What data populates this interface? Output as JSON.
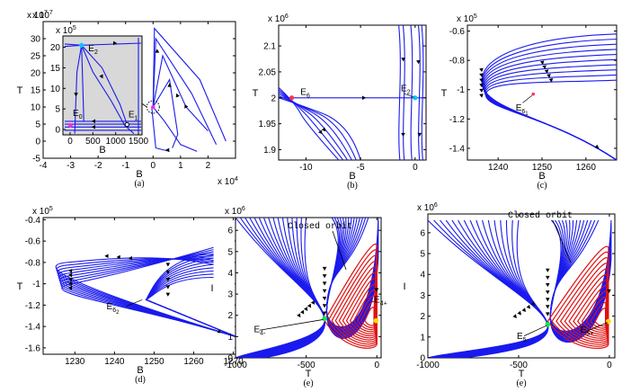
{
  "colors": {
    "trajectory": "#1a1aee",
    "orbit": "#e11010",
    "axis": "#000000",
    "inset_bg": "#d8d8d8"
  },
  "chart_data": [
    {
      "id": "a",
      "type": "line",
      "caption": "(a)",
      "xlabel": "B",
      "ylabel": "T",
      "x_exponent": "x 10",
      "x_exp_power": "4",
      "y_exponent": "x 10",
      "y_exp_power": "7",
      "xlim": [
        -4,
        3
      ],
      "ylim": [
        -5,
        35
      ],
      "xticks": [
        "-4",
        "-3",
        "-2",
        "-1",
        "0",
        "1",
        "2"
      ],
      "yticks": [
        "-5",
        "0",
        "5",
        "10",
        "15",
        "20",
        "25",
        "30"
      ],
      "inset": {
        "xlabel": "B",
        "xticks": [
          "0",
          "500",
          "1000",
          "1500"
        ],
        "y_exponent": "x 10",
        "y_exp_power": "5",
        "yticks": [
          "0",
          "5",
          "10",
          "15",
          "20"
        ],
        "labels": [
          {
            "name": "E",
            "sub": "2",
            "x": 250,
            "y": 20
          },
          {
            "name": "E",
            "sub": "0",
            "x": 10,
            "y": 1
          },
          {
            "name": "E",
            "sub": "1",
            "x": 1200,
            "y": 1
          }
        ]
      }
    },
    {
      "id": "b",
      "type": "line",
      "caption": "(b)",
      "xlabel": "B",
      "ylabel": "T",
      "y_exponent": "x 10",
      "y_exp_power": "6",
      "xlim": [
        -12.5,
        1
      ],
      "ylim": [
        1.88,
        2.14
      ],
      "xticks": [
        {
          "v": -10,
          "t": "-10"
        },
        {
          "v": -5,
          "t": "-5"
        },
        {
          "v": 0,
          "t": "0"
        }
      ],
      "yticks": [
        {
          "v": 1.9,
          "t": "1.9"
        },
        {
          "v": 1.95,
          "t": "1.95"
        },
        {
          "v": 2,
          "t": "2"
        },
        {
          "v": 2.05,
          "t": "2.05"
        },
        {
          "v": 2.1,
          "t": "2.1"
        }
      ],
      "labels": [
        {
          "name": "E",
          "sub": "6",
          "x": -10.5,
          "y": 2.006
        },
        {
          "name": "E",
          "sub": "2",
          "x": -1.3,
          "y": 2.013
        }
      ]
    },
    {
      "id": "c",
      "type": "line",
      "caption": "(c)",
      "xlabel": "B",
      "ylabel": "T",
      "y_exponent": "x 10",
      "y_exp_power": "5",
      "xlim": [
        1233,
        1267
      ],
      "ylim": [
        -1.48,
        -0.56
      ],
      "xticks": [
        {
          "v": 1240,
          "t": "1240"
        },
        {
          "v": 1250,
          "t": "1250"
        },
        {
          "v": 1260,
          "t": "1260"
        }
      ],
      "yticks": [
        {
          "v": -1.4,
          "t": "-1.4"
        },
        {
          "v": -1.2,
          "t": "-1.2"
        },
        {
          "v": -1,
          "t": "-1"
        },
        {
          "v": -0.8,
          "t": "-0.8"
        },
        {
          "v": -0.6,
          "t": "-0.6"
        }
      ],
      "labels": [
        {
          "name": "E",
          "sub": "6",
          "subsub": "1",
          "x": 1244,
          "y": -1.07
        }
      ]
    },
    {
      "id": "d",
      "type": "line",
      "caption": "(d)",
      "xlabel": "B",
      "ylabel": "T",
      "y_exponent": "x 10",
      "y_exp_power": "5",
      "xlim": [
        1222,
        1271
      ],
      "ylim": [
        -1.66,
        -0.38
      ],
      "xticks": [
        {
          "v": 1230,
          "t": "1230"
        },
        {
          "v": 1240,
          "t": "1240"
        },
        {
          "v": 1250,
          "t": "1250"
        },
        {
          "v": 1260,
          "t": "1260"
        },
        {
          "v": 1270,
          "t": "1270"
        }
      ],
      "yticks": [
        {
          "v": -1.6,
          "t": "-1.6"
        },
        {
          "v": -1.4,
          "t": "-1.4"
        },
        {
          "v": -1.2,
          "t": "-1.2"
        },
        {
          "v": -1,
          "t": "-1"
        },
        {
          "v": -0.8,
          "t": "-0.8"
        },
        {
          "v": -0.6,
          "t": "-0.6"
        },
        {
          "v": -0.4,
          "t": "-0.4"
        }
      ],
      "labels": [
        {
          "name": "E",
          "sub": "6",
          "subsub": "2",
          "x": 1238,
          "y": -1.24
        }
      ]
    },
    {
      "id": "e1",
      "type": "line",
      "caption": "(e)",
      "xlabel": "T",
      "ylabel": "I",
      "y_exponent": "x 10",
      "y_exp_power": "6",
      "xlim": [
        -1000,
        30
      ],
      "ylim": [
        0,
        6.6
      ],
      "xticks": [
        {
          "v": -1000,
          "t": "-1000"
        },
        {
          "v": -500,
          "t": "-500"
        },
        {
          "v": 0,
          "t": "0"
        }
      ],
      "yticks": [
        {
          "v": 0,
          "t": "0"
        },
        {
          "v": 1,
          "t": "1"
        },
        {
          "v": 2,
          "t": "2"
        },
        {
          "v": 3,
          "t": "3"
        },
        {
          "v": 4,
          "t": "4"
        },
        {
          "v": 5,
          "t": "5"
        },
        {
          "v": 6,
          "t": "6"
        }
      ],
      "annotation": "Closed orbit",
      "labels": [
        {
          "name": "E",
          "sub": "4-",
          "x": -870,
          "y": 1.2
        },
        {
          "name": "E",
          "sub": "4+",
          "x": -20,
          "y": 2.6
        }
      ]
    },
    {
      "id": "e2",
      "type": "line",
      "caption": "(e)",
      "xlabel": "T",
      "ylabel": "I",
      "y_exponent": "x 10",
      "y_exp_power": "6",
      "xlim": [
        -1000,
        30
      ],
      "ylim": [
        0,
        6.9
      ],
      "xticks": [
        {
          "v": -1000,
          "t": "-1000"
        },
        {
          "v": -500,
          "t": "-500"
        },
        {
          "v": 0,
          "t": "0"
        }
      ],
      "yticks": [
        {
          "v": 0,
          "t": "0"
        },
        {
          "v": 1,
          "t": "1"
        },
        {
          "v": 2,
          "t": "2"
        },
        {
          "v": 3,
          "t": "3"
        },
        {
          "v": 4,
          "t": "4"
        },
        {
          "v": 5,
          "t": "5"
        },
        {
          "v": 6,
          "t": "6"
        }
      ],
      "annotation": "Closed orbit",
      "labels": [
        {
          "name": "E",
          "sub": "5-",
          "x": -510,
          "y": 0.9
        },
        {
          "name": "E",
          "sub": "5+",
          "x": -160,
          "y": 1.2
        }
      ]
    }
  ]
}
